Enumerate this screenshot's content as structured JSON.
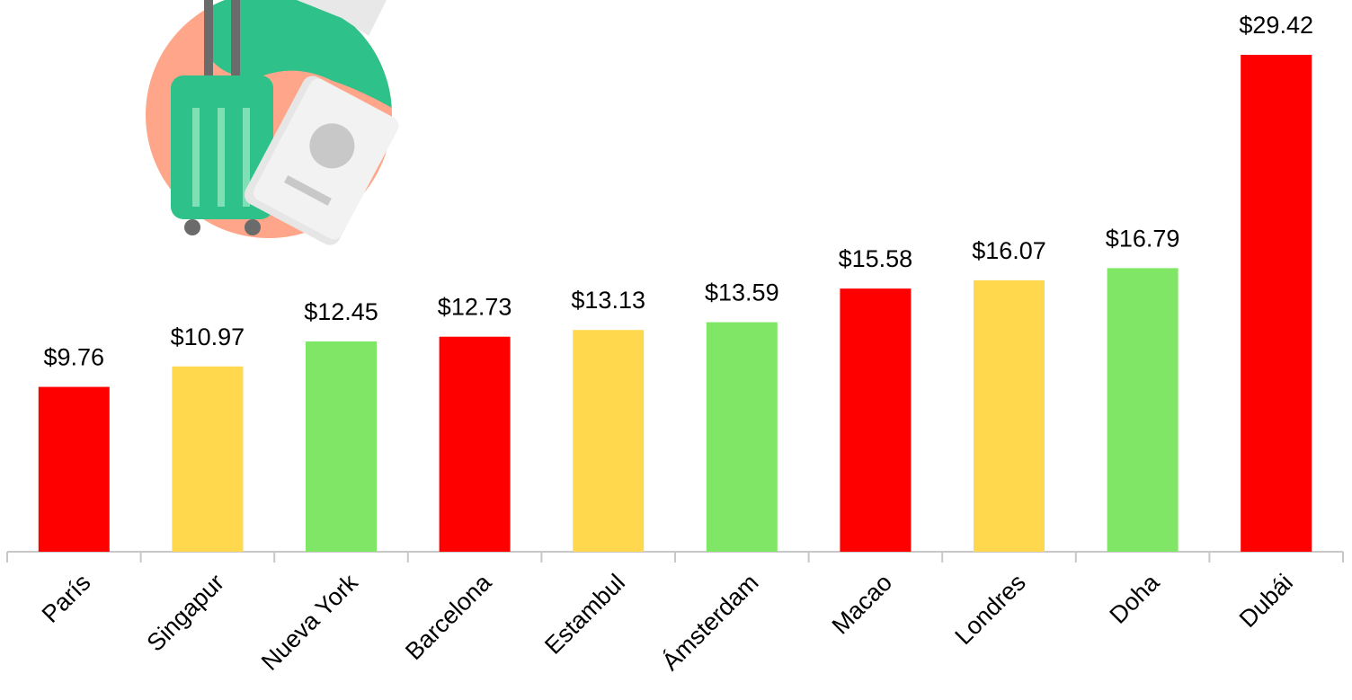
{
  "chart_data": {
    "type": "bar",
    "categories": [
      "París",
      "Singapur",
      "Nueva York",
      "Barcelona",
      "Estambul",
      "Ámsterdam",
      "Macao",
      "Londres",
      "Doha",
      "Dubái"
    ],
    "values": [
      9.76,
      10.97,
      12.45,
      12.73,
      13.13,
      13.59,
      15.58,
      16.07,
      16.79,
      29.42
    ],
    "value_labels": [
      "$9.76",
      "$10.97",
      "$12.45",
      "$12.73",
      "$13.13",
      "$13.59",
      "$15.58",
      "$16.07",
      "$16.79",
      "$29.42"
    ],
    "colors": [
      "#ff0000",
      "#ffd84d",
      "#80e665",
      "#ff0000",
      "#ffd84d",
      "#80e665",
      "#ff0000",
      "#ffd84d",
      "#80e665",
      "#ff0000"
    ]
  }
}
